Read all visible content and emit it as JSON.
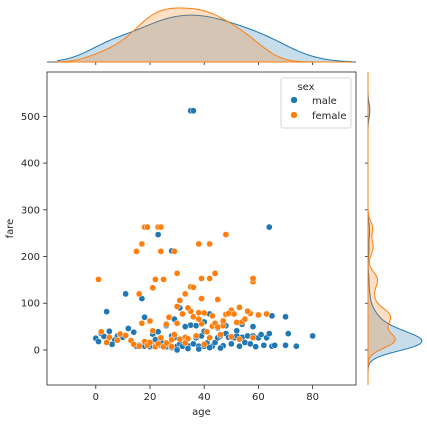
{
  "chart_data": {
    "type": "scatter",
    "xlabel": "age",
    "ylabel": "fare",
    "xlim": [
      -18,
      96
    ],
    "ylim": [
      -75,
      595
    ],
    "xticks": [
      0,
      20,
      40,
      60,
      80
    ],
    "yticks": [
      0,
      100,
      200,
      300,
      400,
      500
    ],
    "grid": false,
    "legend": {
      "title": "sex",
      "placement": "top-right"
    },
    "marginals": {
      "top": "kde of age by sex",
      "right": "kde of fare by sex"
    },
    "series": [
      {
        "name": "male",
        "color": "#1f77b4",
        "points": [
          [
            35,
            512
          ],
          [
            36,
            512
          ],
          [
            64,
            263
          ],
          [
            23,
            247
          ],
          [
            28,
            212
          ],
          [
            1,
            151
          ],
          [
            11,
            120
          ],
          [
            17,
            110
          ],
          [
            31,
            90
          ],
          [
            42,
            77
          ],
          [
            50,
            85
          ],
          [
            65,
            73
          ],
          [
            70,
            71
          ],
          [
            4,
            82
          ],
          [
            48,
            52
          ],
          [
            54,
            55
          ],
          [
            2,
            35
          ],
          [
            3,
            29
          ],
          [
            5,
            40
          ],
          [
            7,
            21
          ],
          [
            8,
            30
          ],
          [
            9,
            33
          ],
          [
            10,
            27
          ],
          [
            12,
            46
          ],
          [
            14,
            38
          ],
          [
            15,
            8
          ],
          [
            16,
            10
          ],
          [
            18,
            8
          ],
          [
            19,
            13
          ],
          [
            20,
            7
          ],
          [
            21,
            9
          ],
          [
            22,
            8
          ],
          [
            24,
            10
          ],
          [
            25,
            8
          ],
          [
            26,
            7
          ],
          [
            27,
            14
          ],
          [
            28,
            30
          ],
          [
            29,
            26
          ],
          [
            30,
            8
          ],
          [
            31,
            13
          ],
          [
            32,
            8
          ],
          [
            33,
            26
          ],
          [
            34,
            9
          ],
          [
            35,
            53
          ],
          [
            36,
            13
          ],
          [
            37,
            26
          ],
          [
            38,
            8
          ],
          [
            39,
            30
          ],
          [
            40,
            8
          ],
          [
            41,
            15
          ],
          [
            42,
            26
          ],
          [
            43,
            8
          ],
          [
            44,
            16
          ],
          [
            45,
            26
          ],
          [
            46,
            30
          ],
          [
            47,
            9
          ],
          [
            48,
            35
          ],
          [
            49,
            27
          ],
          [
            50,
            13
          ],
          [
            51,
            26
          ],
          [
            52,
            30
          ],
          [
            53,
            8
          ],
          [
            54,
            27
          ],
          [
            55,
            16
          ],
          [
            56,
            30
          ],
          [
            57,
            13
          ],
          [
            58,
            30
          ],
          [
            59,
            7
          ],
          [
            60,
            26
          ],
          [
            61,
            33
          ],
          [
            62,
            10
          ],
          [
            63,
            26
          ],
          [
            64,
            35
          ],
          [
            65,
            8
          ],
          [
            66,
            10
          ],
          [
            70,
            10
          ],
          [
            71,
            35
          ],
          [
            74,
            8
          ],
          [
            80,
            30
          ],
          [
            0,
            25
          ],
          [
            1,
            18
          ],
          [
            6,
            12
          ],
          [
            13,
            20
          ],
          [
            23,
            39
          ],
          [
            26,
            52
          ],
          [
            33,
            50
          ],
          [
            40,
            40
          ],
          [
            44,
            57
          ],
          [
            52,
            41
          ],
          [
            58,
            50
          ],
          [
            18,
            70
          ],
          [
            29,
            66
          ],
          [
            40,
            60
          ],
          [
            45,
            47
          ],
          [
            22,
            22
          ],
          [
            37,
            52
          ],
          [
            28,
            5
          ],
          [
            30,
            0
          ],
          [
            34,
            3
          ],
          [
            38,
            2
          ],
          [
            42,
            5
          ],
          [
            46,
            4
          ],
          [
            24,
            19
          ],
          [
            21,
            34
          ]
        ]
      },
      {
        "name": "female",
        "color": "#ff7f0e",
        "points": [
          [
            18,
            263
          ],
          [
            19,
            263
          ],
          [
            23,
            263
          ],
          [
            24,
            263
          ],
          [
            48,
            247
          ],
          [
            38,
            227
          ],
          [
            42,
            227
          ],
          [
            17,
            227
          ],
          [
            24,
            211
          ],
          [
            29,
            211
          ],
          [
            15,
            211
          ],
          [
            30,
            164
          ],
          [
            35,
            135
          ],
          [
            36,
            134
          ],
          [
            39,
            153
          ],
          [
            42,
            153
          ],
          [
            44,
            164
          ],
          [
            22,
            151
          ],
          [
            25,
            151
          ],
          [
            58,
            146
          ],
          [
            58,
            153
          ],
          [
            21,
            133
          ],
          [
            16,
            120
          ],
          [
            33,
            120
          ],
          [
            39,
            110
          ],
          [
            45,
            108
          ],
          [
            50,
            85
          ],
          [
            53,
            91
          ],
          [
            57,
            78
          ],
          [
            30,
            93
          ],
          [
            31,
            106
          ],
          [
            40,
            79
          ],
          [
            1,
            151
          ],
          [
            2,
            39
          ],
          [
            5,
            27
          ],
          [
            9,
            34
          ],
          [
            11,
            31
          ],
          [
            13,
            20
          ],
          [
            14,
            12
          ],
          [
            16,
            8
          ],
          [
            18,
            18
          ],
          [
            19,
            10
          ],
          [
            20,
            16
          ],
          [
            22,
            7
          ],
          [
            23,
            13
          ],
          [
            24,
            26
          ],
          [
            26,
            55
          ],
          [
            27,
            12
          ],
          [
            28,
            22
          ],
          [
            29,
            33
          ],
          [
            30,
            57
          ],
          [
            31,
            23
          ],
          [
            32,
            77
          ],
          [
            33,
            27
          ],
          [
            34,
            24
          ],
          [
            35,
            83
          ],
          [
            36,
            71
          ],
          [
            37,
            30
          ],
          [
            38,
            80
          ],
          [
            39,
            56
          ],
          [
            40,
            12
          ],
          [
            41,
            39
          ],
          [
            42,
            26
          ],
          [
            43,
            51
          ],
          [
            44,
            57
          ],
          [
            45,
            49
          ],
          [
            46,
            33
          ],
          [
            47,
            52
          ],
          [
            48,
            76
          ],
          [
            49,
            78
          ],
          [
            50,
            28
          ],
          [
            51,
            77
          ],
          [
            52,
            59
          ],
          [
            53,
            23
          ],
          [
            54,
            60
          ],
          [
            56,
            83
          ],
          [
            58,
            26
          ],
          [
            60,
            75
          ],
          [
            63,
            77
          ],
          [
            4,
            16
          ],
          [
            8,
            21
          ],
          [
            21,
            41
          ],
          [
            25,
            7
          ],
          [
            26,
            15
          ],
          [
            28,
            7
          ],
          [
            33,
            15
          ],
          [
            17,
            57
          ],
          [
            20,
            62
          ],
          [
            27,
            70
          ],
          [
            34,
            90
          ],
          [
            38,
            66
          ],
          [
            43,
            73
          ],
          [
            47,
            62
          ],
          [
            55,
            66
          ]
        ]
      }
    ]
  }
}
